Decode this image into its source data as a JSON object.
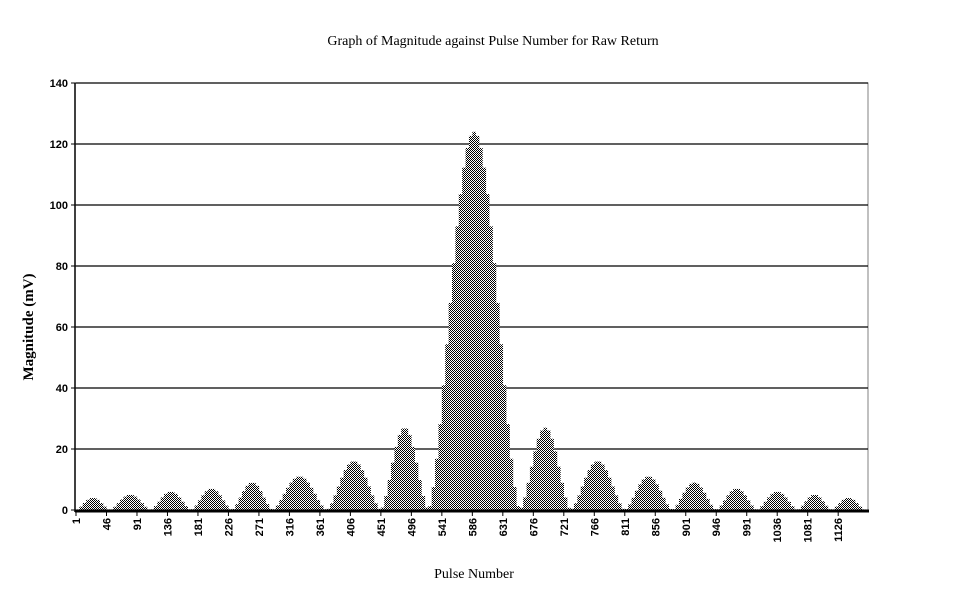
{
  "chart_data": {
    "type": "bar",
    "title": "Graph of Magnitude against Pulse Number for Raw Return",
    "xlabel": "Pulse Number",
    "ylabel": "Magnitude (mV)",
    "ylim": [
      0,
      140
    ],
    "yticks": [
      0,
      20,
      40,
      60,
      80,
      100,
      120,
      140
    ],
    "xlim": [
      1,
      1170
    ],
    "xtick_labels": [
      "1",
      "46",
      "91",
      "136",
      "181",
      "226",
      "271",
      "316",
      "361",
      "406",
      "451",
      "496",
      "541",
      "586",
      "631",
      "676",
      "721",
      "766",
      "811",
      "856",
      "901",
      "946",
      "991",
      "1036",
      "1081",
      "1126"
    ],
    "xtick_values": [
      1,
      46,
      91,
      136,
      181,
      226,
      271,
      316,
      361,
      406,
      451,
      496,
      541,
      586,
      631,
      676,
      721,
      766,
      811,
      856,
      901,
      946,
      991,
      1036,
      1081,
      1126
    ],
    "grid": "horizontal",
    "lobes": [
      {
        "start": 1,
        "end": 51,
        "peak": 4
      },
      {
        "start": 51,
        "end": 111,
        "peak": 5
      },
      {
        "start": 111,
        "end": 171,
        "peak": 6
      },
      {
        "start": 171,
        "end": 231,
        "peak": 7
      },
      {
        "start": 231,
        "end": 291,
        "peak": 9
      },
      {
        "start": 291,
        "end": 371,
        "peak": 11
      },
      {
        "start": 371,
        "end": 451,
        "peak": 16
      },
      {
        "start": 451,
        "end": 521,
        "peak": 27
      },
      {
        "start": 521,
        "end": 656,
        "peak": 124
      },
      {
        "start": 656,
        "end": 731,
        "peak": 27
      },
      {
        "start": 731,
        "end": 811,
        "peak": 16
      },
      {
        "start": 811,
        "end": 881,
        "peak": 11
      },
      {
        "start": 881,
        "end": 946,
        "peak": 9
      },
      {
        "start": 946,
        "end": 1006,
        "peak": 7
      },
      {
        "start": 1006,
        "end": 1066,
        "peak": 6
      },
      {
        "start": 1066,
        "end": 1116,
        "peak": 5
      },
      {
        "start": 1116,
        "end": 1166,
        "peak": 4
      }
    ],
    "bar_step": 5
  }
}
